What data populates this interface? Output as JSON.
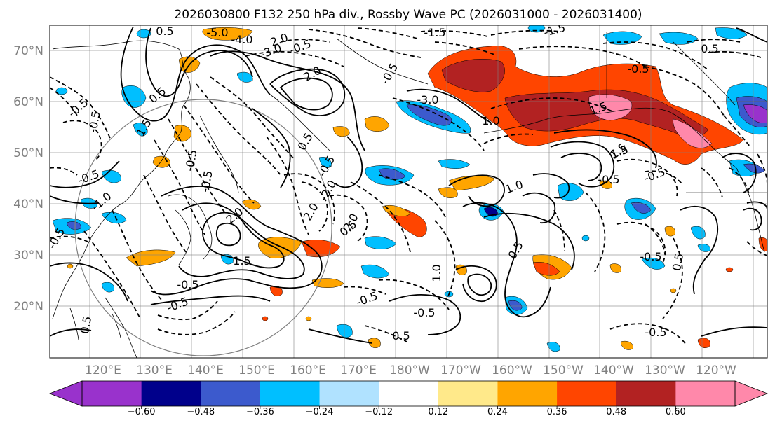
{
  "title": "2026030800 F132 250 hPa div., Rossby Wave PC (2026031000 - 2026031400)",
  "lat_labels": [
    "70°N",
    "60°N",
    "50°N",
    "40°N",
    "30°N",
    "20°N"
  ],
  "lon_labels": [
    "120°E",
    "130°E",
    "140°E",
    "150°E",
    "160°E",
    "170°E",
    "180°W",
    "170°W",
    "160°W",
    "150°W",
    "140°W",
    "130°W",
    "120°W"
  ],
  "colorbar": {
    "ticks": [
      "−0.60",
      "−0.48",
      "−0.36",
      "−0.24",
      "−0.12",
      "0.12",
      "0.24",
      "0.36",
      "0.48",
      "0.60"
    ],
    "colors": [
      "#9932cc",
      "#00008b",
      "#3c5acd",
      "#00bfff",
      "#b0e2ff",
      "#ffffff",
      "#ffe98a",
      "#ffa500",
      "#ff4500",
      "#b22222",
      "#ff88aa",
      "#ff88aa"
    ]
  },
  "contour_labels": [
    "-5.0",
    "-4.0",
    "-3.0",
    "-1.5",
    "-1.5",
    "-0.5",
    "0.5",
    "2.0",
    "2.0",
    "-0.5",
    "-3.0",
    "1.0",
    "1.5",
    "0.5",
    "-0.5",
    "-0.5",
    "1.5",
    "-0.5",
    "-0.5",
    "2.0",
    "2.0",
    "0.5",
    "-0.5",
    "-2.0",
    "0.5",
    "1.0",
    "0.5",
    "1.5",
    "-0.5",
    "0.5",
    "1.0",
    "1.5",
    "-0.5",
    "-0.5",
    "-0.5",
    "-0.5",
    "0.5",
    "-0.5",
    "-0.5",
    "-0.5",
    "1.5",
    "0.5",
    "-0.5",
    "-1.0",
    "-0.5",
    "2.0",
    "0.5",
    "-0.5"
  ],
  "colors": {
    "positive_contour": "#000000",
    "negative_contour": "#000000",
    "grid": "#808080",
    "circle": "#808080"
  }
}
